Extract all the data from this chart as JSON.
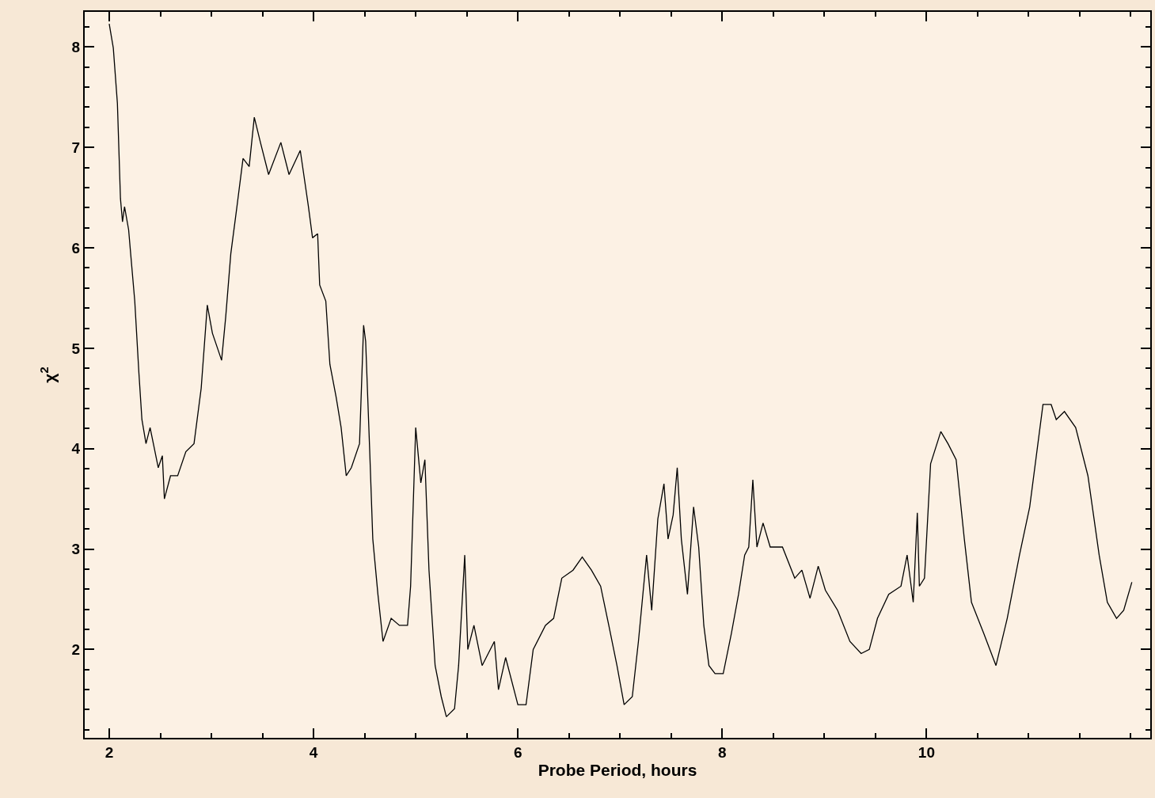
{
  "chart_data": {
    "type": "line",
    "xlabel": "Probe Period, hours",
    "ylabel": "χ$^{2}$",
    "xlim": [
      1.76,
      12.19
    ],
    "ylim": [
      1.12,
      8.35
    ],
    "xticks": [
      2,
      4,
      6,
      8,
      10
    ],
    "yticks": [
      2,
      3,
      4,
      5,
      6,
      7,
      8
    ],
    "marker": "none",
    "line_style": "solid",
    "x": [
      2.0,
      2.04,
      2.08,
      2.11,
      2.13,
      2.15,
      2.19,
      2.21,
      2.25,
      2.29,
      2.32,
      2.36,
      2.4,
      2.44,
      2.48,
      2.52,
      2.54,
      2.6,
      2.67,
      2.75,
      2.83,
      2.9,
      2.96,
      3.01,
      3.06,
      3.1,
      3.14,
      3.19,
      3.25,
      3.31,
      3.37,
      3.42,
      3.48,
      3.56,
      3.68,
      3.76,
      3.87,
      3.95,
      3.99,
      4.04,
      4.06,
      4.12,
      4.16,
      4.22,
      4.27,
      4.32,
      4.37,
      4.45,
      4.49,
      4.51,
      4.55,
      4.58,
      4.63,
      4.68,
      4.76,
      4.84,
      4.92,
      4.95,
      5.0,
      5.05,
      5.09,
      5.13,
      5.19,
      5.25,
      5.3,
      5.38,
      5.42,
      5.48,
      5.51,
      5.57,
      5.65,
      5.77,
      5.81,
      5.88,
      6.0,
      6.08,
      6.15,
      6.27,
      6.35,
      6.43,
      6.54,
      6.63,
      6.72,
      6.81,
      6.89,
      6.97,
      7.04,
      7.12,
      7.18,
      7.26,
      7.31,
      7.37,
      7.43,
      7.47,
      7.52,
      7.56,
      7.6,
      7.66,
      7.72,
      7.77,
      7.82,
      7.87,
      7.93,
      8.01,
      8.09,
      8.16,
      8.22,
      8.26,
      8.3,
      8.34,
      8.4,
      8.47,
      8.59,
      8.71,
      8.78,
      8.86,
      8.94,
      9.01,
      9.13,
      9.25,
      9.36,
      9.44,
      9.52,
      9.63,
      9.75,
      9.81,
      9.87,
      9.91,
      9.93,
      9.98,
      10.04,
      10.14,
      10.21,
      10.29,
      10.37,
      10.44,
      10.56,
      10.68,
      10.79,
      10.91,
      11.01,
      11.14,
      11.22,
      11.27,
      11.35,
      11.46,
      11.58,
      11.69,
      11.77,
      11.86,
      11.93,
      12.01
    ],
    "series": [
      {
        "color": "#000000",
        "values": [
          8.23,
          7.99,
          7.44,
          6.49,
          6.26,
          6.41,
          6.18,
          5.94,
          5.47,
          4.76,
          4.29,
          4.05,
          4.21,
          4.01,
          3.81,
          3.93,
          3.5,
          3.73,
          3.73,
          3.97,
          4.05,
          4.6,
          5.43,
          5.15,
          5.0,
          4.88,
          5.31,
          5.94,
          6.41,
          6.89,
          6.81,
          7.3,
          7.05,
          6.73,
          7.05,
          6.73,
          6.97,
          6.41,
          6.1,
          6.14,
          5.63,
          5.47,
          4.84,
          4.52,
          4.21,
          3.73,
          3.81,
          4.05,
          5.23,
          5.07,
          3.97,
          3.1,
          2.55,
          2.08,
          2.31,
          2.24,
          2.24,
          2.63,
          4.21,
          3.66,
          3.89,
          2.79,
          1.84,
          1.53,
          1.33,
          1.41,
          1.84,
          2.94,
          2.0,
          2.24,
          1.84,
          2.08,
          1.6,
          1.92,
          1.45,
          1.45,
          2.0,
          2.24,
          2.31,
          2.71,
          2.79,
          2.92,
          2.79,
          2.63,
          2.24,
          1.84,
          1.45,
          1.53,
          2.08,
          2.94,
          2.39,
          3.3,
          3.65,
          3.1,
          3.34,
          3.81,
          3.1,
          2.55,
          3.42,
          3.02,
          2.24,
          1.84,
          1.76,
          1.76,
          2.16,
          2.55,
          2.94,
          3.02,
          3.69,
          3.02,
          3.26,
          3.02,
          3.02,
          2.71,
          2.79,
          2.51,
          2.83,
          2.59,
          2.39,
          2.08,
          1.96,
          2.0,
          2.31,
          2.55,
          2.63,
          2.94,
          2.47,
          3.36,
          2.63,
          2.71,
          3.85,
          4.17,
          4.05,
          3.89,
          3.1,
          2.47,
          2.16,
          1.84,
          2.31,
          2.94,
          3.42,
          4.44,
          4.44,
          4.29,
          4.37,
          4.21,
          3.73,
          2.94,
          2.47,
          2.31,
          2.39,
          2.67
        ]
      }
    ]
  }
}
